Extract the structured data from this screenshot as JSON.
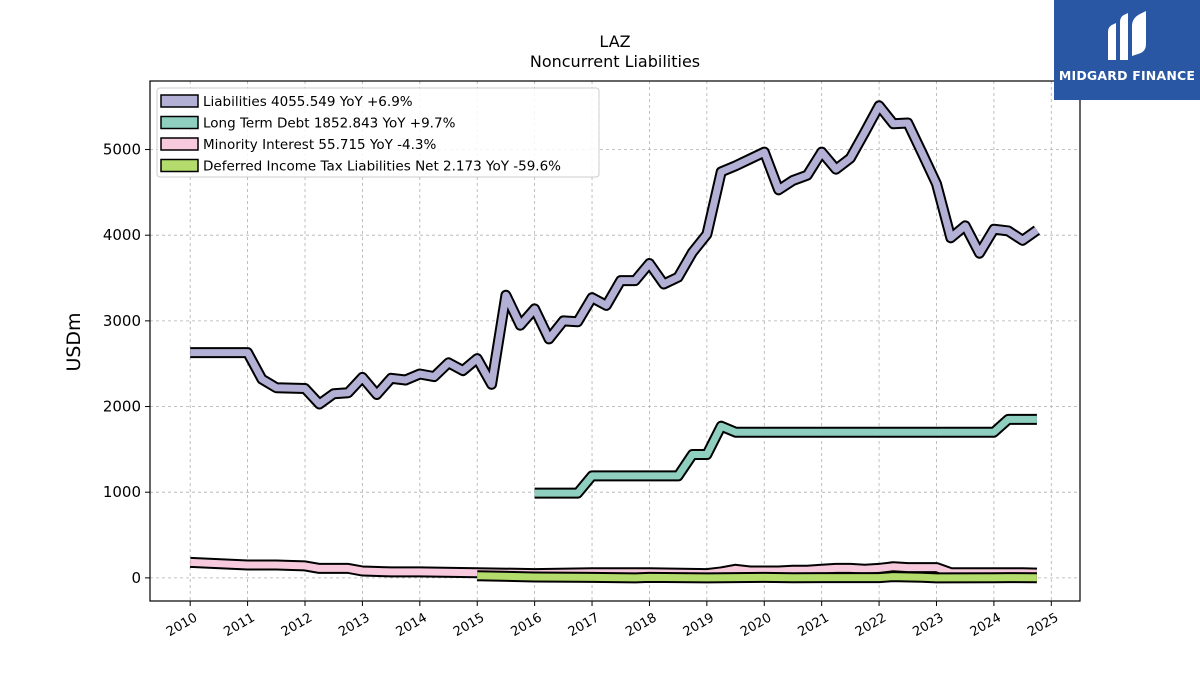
{
  "chart_data": {
    "type": "line",
    "title": "LAZ",
    "subtitle": "Noncurrent  Liabilities",
    "ylabel": "USDm",
    "xlabel": "",
    "xlim": [
      2009.3,
      2025.5
    ],
    "ylim": [
      -270,
      5800
    ],
    "yticks": [
      0,
      1000,
      2000,
      3000,
      4000,
      5000
    ],
    "xticks": [
      2010,
      2011,
      2012,
      2013,
      2014,
      2015,
      2016,
      2017,
      2018,
      2019,
      2020,
      2021,
      2022,
      2023,
      2024,
      2025
    ],
    "grid": true,
    "legend_position": "top-left",
    "series": [
      {
        "name": "Liabilities",
        "legend": "Liabilities  4055.549 YoY +6.9%",
        "color": "#b3b0d6",
        "x": [
          2010.0,
          2011.0,
          2011.25,
          2011.5,
          2012.0,
          2012.25,
          2012.5,
          2012.75,
          2013.0,
          2013.25,
          2013.5,
          2013.75,
          2014.0,
          2014.25,
          2014.5,
          2014.75,
          2015.0,
          2015.25,
          2015.5,
          2015.75,
          2016.0,
          2016.25,
          2016.5,
          2016.75,
          2017.0,
          2017.25,
          2017.5,
          2017.75,
          2018.0,
          2018.25,
          2018.5,
          2018.75,
          2019.0,
          2019.25,
          2019.5,
          2019.75,
          2020.0,
          2020.25,
          2020.5,
          2020.75,
          2021.0,
          2021.25,
          2021.5,
          2021.75,
          2022.0,
          2022.25,
          2022.5,
          2022.75,
          2023.0,
          2023.25,
          2023.5,
          2023.75,
          2024.0,
          2024.25,
          2024.5,
          2024.75
        ],
        "y": [
          2630,
          2630,
          2320,
          2220,
          2210,
          2030,
          2150,
          2160,
          2340,
          2140,
          2330,
          2310,
          2380,
          2350,
          2510,
          2420,
          2560,
          2260,
          3300,
          2950,
          3140,
          2790,
          3000,
          2990,
          3270,
          3180,
          3470,
          3470,
          3670,
          3430,
          3510,
          3800,
          4010,
          4740,
          4810,
          4890,
          4970,
          4530,
          4640,
          4700,
          4970,
          4770,
          4900,
          5200,
          5510,
          5300,
          5310,
          4960,
          4600,
          3970,
          4110,
          3790,
          4070,
          4050,
          3940,
          4060
        ]
      },
      {
        "name": "Long Term Debt",
        "legend": "Long Term Debt  1852.843 YoY +9.7%",
        "color": "#8ecfc0",
        "x": [
          2016.0,
          2016.25,
          2016.5,
          2016.75,
          2017.0,
          2017.25,
          2017.5,
          2017.75,
          2018.0,
          2018.25,
          2018.5,
          2018.75,
          2019.0,
          2019.25,
          2019.5,
          2019.75,
          2020.0,
          2024.0,
          2024.25,
          2024.5,
          2024.75
        ],
        "y": [
          990,
          990,
          990,
          990,
          1190,
          1190,
          1190,
          1190,
          1190,
          1190,
          1190,
          1440,
          1440,
          1770,
          1700,
          1700,
          1700,
          1700,
          1850,
          1850,
          1850
        ]
      },
      {
        "name": "Minority Interest",
        "legend": "Minority Interest  55.715 YoY -4.3%",
        "color": "#f7c9dc",
        "x": [
          2010.0,
          2011.0,
          2011.5,
          2012.0,
          2012.25,
          2012.75,
          2013.0,
          2013.5,
          2014.0,
          2015.0,
          2016.0,
          2017.0,
          2018.0,
          2019.0,
          2019.25,
          2019.5,
          2019.75,
          2020.0,
          2020.25,
          2020.5,
          2020.75,
          2021.0,
          2021.25,
          2021.5,
          2021.75,
          2022.0,
          2022.25,
          2022.5,
          2022.75,
          2023.0,
          2023.25,
          2024.0,
          2024.25,
          2024.5,
          2024.75
        ],
        "y": [
          180,
          150,
          150,
          140,
          110,
          110,
          80,
          70,
          70,
          60,
          50,
          60,
          60,
          50,
          70,
          100,
          80,
          80,
          80,
          90,
          90,
          100,
          110,
          110,
          100,
          110,
          130,
          120,
          120,
          120,
          60,
          60,
          60,
          60,
          56
        ]
      },
      {
        "name": "Deferred Income Tax Liabilities Net",
        "legend": "Deferred Income Tax Liabilities Net  2.173 YoY -59.6%",
        "color": "#b3dc6c",
        "x": [
          2015.0,
          2016.0,
          2017.0,
          2017.75,
          2018.0,
          2019.0,
          2019.5,
          2020.0,
          2020.5,
          2021.0,
          2021.5,
          2022.0,
          2022.25,
          2022.75,
          2023.0,
          2024.0,
          2024.25,
          2024.75
        ],
        "y": [
          25,
          10,
          5,
          0,
          5,
          0,
          3,
          5,
          2,
          3,
          3,
          3,
          15,
          8,
          0,
          2,
          3,
          2
        ]
      }
    ]
  },
  "logo": {
    "text": "MIDGARD FINANCE",
    "color": "#2a57a4"
  }
}
